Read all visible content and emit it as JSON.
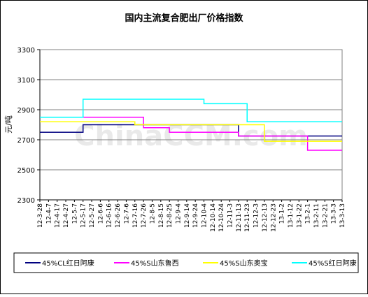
{
  "chart_data": {
    "type": "line",
    "title": "国内主流复合肥出厂价格指数",
    "ylabel": "元/吨",
    "xlabel": "",
    "ylim": [
      2300,
      3300
    ],
    "yticks": [
      2300,
      2500,
      2700,
      2900,
      3100,
      3300
    ],
    "grid": true,
    "legend_position": "bottom",
    "watermark": "ChinaCCM.com",
    "categories": [
      "12-3-28",
      "12-4-7",
      "12-4-17",
      "12-4-27",
      "12-5-7",
      "12-5-17",
      "12-5-27",
      "12-6-6",
      "12-6-16",
      "12-6-26",
      "12-7-6",
      "12-7-16",
      "12-7-26",
      "12-8-5",
      "12-8-15",
      "12-8-25",
      "12-9-4",
      "12-9-14",
      "12-9-24",
      "12-10-4",
      "12-10-14",
      "12-10-24",
      "12-11-3",
      "12-11-13",
      "12-11-23",
      "12-12-3",
      "12-12-13",
      "12-12-23",
      "13-1-2",
      "13-1-12",
      "13-1-22",
      "13-2-1",
      "13-2-11",
      "13-2-21",
      "13-3-3",
      "13-3-13"
    ],
    "series": [
      {
        "name": "45%CL红日阿康",
        "color": "#000080",
        "values": [
          2750,
          2750,
          2750,
          2750,
          2750,
          2800,
          2800,
          2800,
          2800,
          2800,
          2800,
          2800,
          2800,
          2800,
          2800,
          2800,
          2800,
          2800,
          2800,
          2800,
          2800,
          2800,
          2800,
          2725,
          2725,
          2725,
          2725,
          2725,
          2725,
          2725,
          2725,
          2725,
          2725,
          2725,
          2725,
          2725
        ]
      },
      {
        "name": "45%S山东鲁西",
        "color": "#ff00ff",
        "values": [
          2850,
          2850,
          2850,
          2850,
          2850,
          2850,
          2850,
          2850,
          2850,
          2850,
          2850,
          2850,
          2780,
          2780,
          2780,
          2750,
          2750,
          2750,
          2750,
          2750,
          2750,
          2750,
          2750,
          2725,
          2725,
          2725,
          2725,
          2725,
          2725,
          2725,
          2725,
          2630,
          2630,
          2630,
          2630,
          2630
        ]
      },
      {
        "name": "45%S山东奥宝",
        "color": "#ffff00",
        "values": [
          2820,
          2820,
          2820,
          2820,
          2820,
          2820,
          2820,
          2820,
          2820,
          2820,
          2820,
          2800,
          2800,
          2800,
          2800,
          2800,
          2800,
          2800,
          2800,
          2800,
          2800,
          2800,
          2800,
          2800,
          2800,
          2800,
          2690,
          2690,
          2690,
          2690,
          2690,
          2690,
          2690,
          2690,
          2690,
          2690
        ]
      },
      {
        "name": "45%S红日阿康",
        "color": "#00ffff",
        "values": [
          2850,
          2850,
          2850,
          2850,
          2850,
          2970,
          2970,
          2970,
          2970,
          2970,
          2970,
          2970,
          2970,
          2970,
          2970,
          2970,
          2970,
          2970,
          2970,
          2940,
          2940,
          2940,
          2940,
          2940,
          2820,
          2820,
          2820,
          2820,
          2820,
          2820,
          2820,
          2820,
          2820,
          2820,
          2820,
          2820
        ]
      }
    ]
  }
}
